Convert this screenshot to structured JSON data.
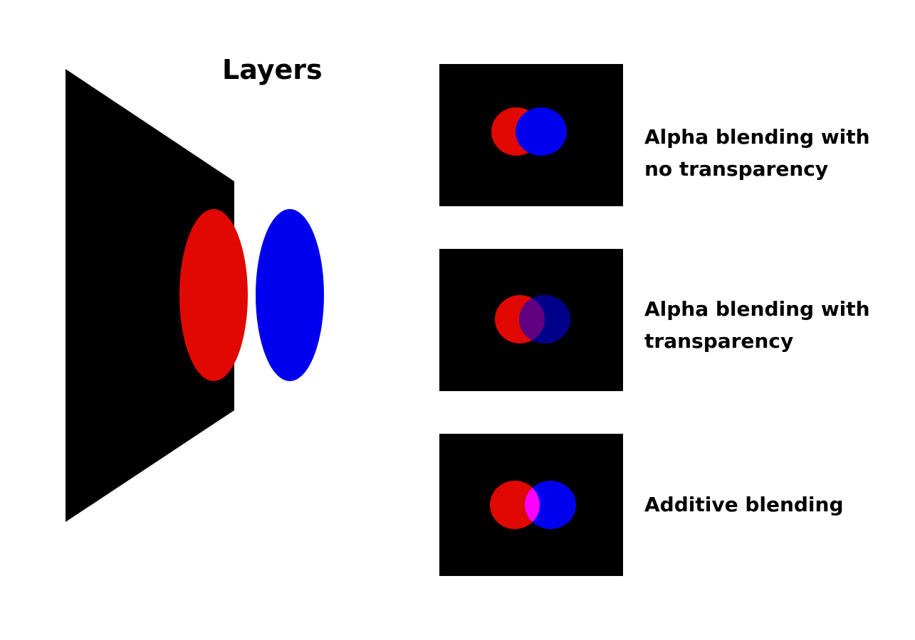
{
  "title": "Layers",
  "colors": {
    "background": "#000000",
    "red": "#e00800",
    "blue": "#0000ee",
    "blue_transparent": "#00008a",
    "overlap_transparent": "#600080",
    "overlap_additive": "#ff00ff"
  },
  "panels": [
    {
      "label": "Alpha blending with\nno transparency"
    },
    {
      "label": "Alpha blending with\ntransparency"
    },
    {
      "label": "Additive blending"
    }
  ]
}
